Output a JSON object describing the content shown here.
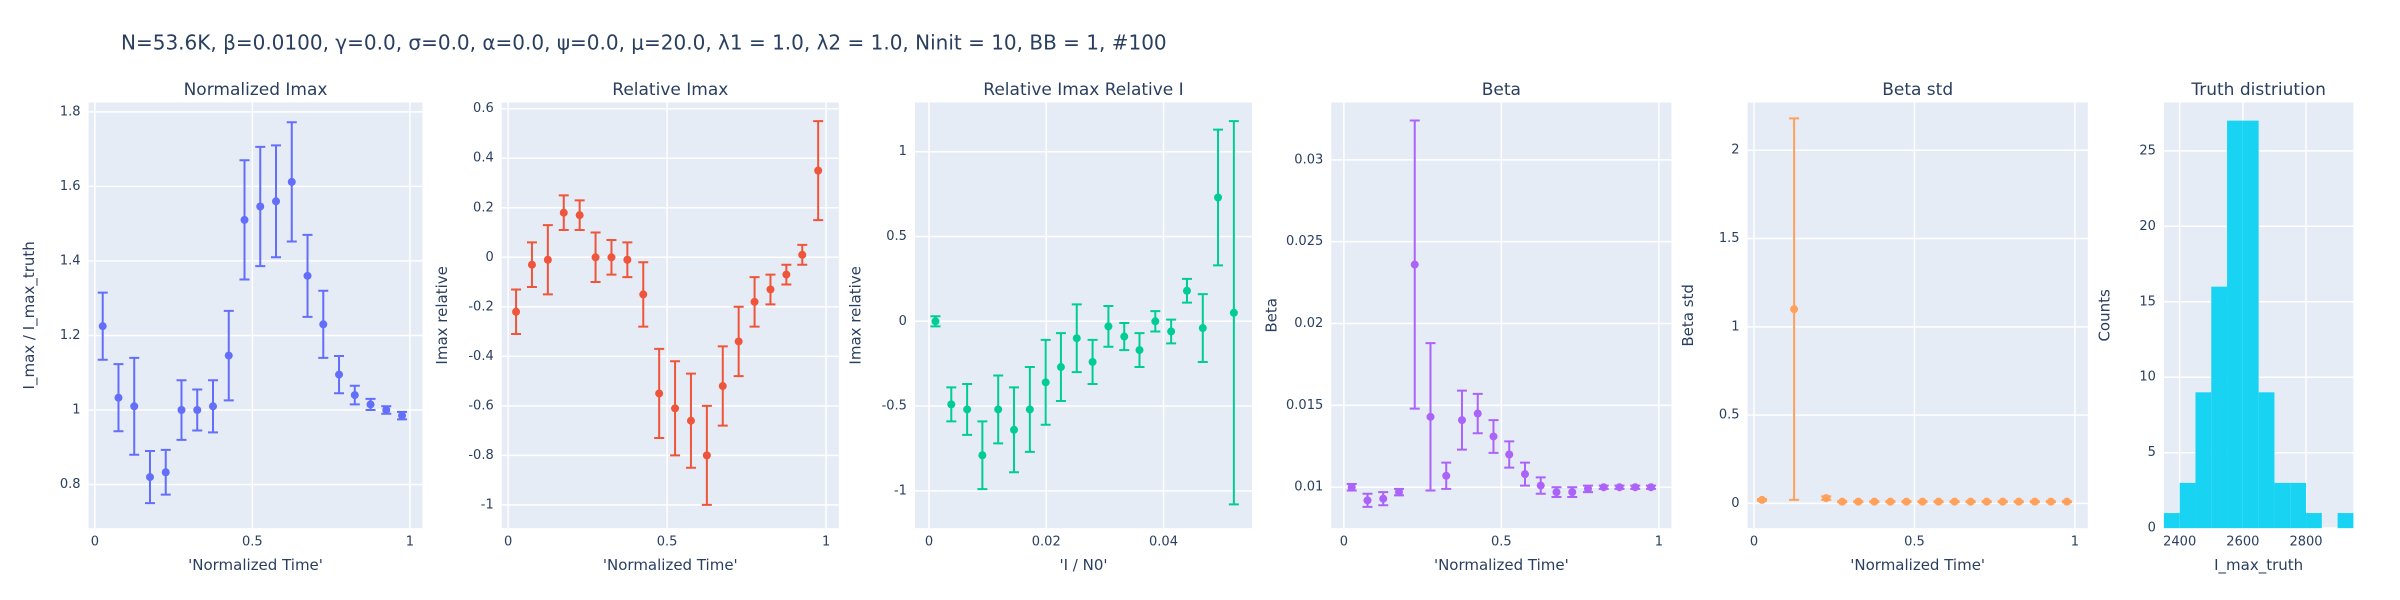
{
  "title": "N=53.6K, β=0.0100, γ=0.0, σ=0.0,  α=0.0, ψ=0.0, μ=20.0, λ1 = 1.0, λ2 = 1.0, Ninit = 10, BB = 1, #100",
  "chart_data": [
    {
      "type": "scatter",
      "title": "Normalized Imax",
      "x_label": "'Normalized Time'",
      "y_label": "I_max / I_max_truth",
      "color": "#636efa",
      "x": [
        0.025,
        0.075,
        0.125,
        0.175,
        0.225,
        0.275,
        0.325,
        0.375,
        0.425,
        0.475,
        0.525,
        0.575,
        0.625,
        0.675,
        0.725,
        0.775,
        0.825,
        0.875,
        0.925,
        0.975
      ],
      "values": [
        1.225,
        1.033,
        1.01,
        0.82,
        0.833,
        1.0,
        1.0,
        1.01,
        1.146,
        1.51,
        1.546,
        1.56,
        1.612,
        1.36,
        1.23,
        1.095,
        1.04,
        1.015,
        1.0,
        0.985
      ],
      "errors": [
        0.09,
        0.09,
        0.13,
        0.07,
        0.06,
        0.08,
        0.055,
        0.07,
        0.12,
        0.16,
        0.16,
        0.15,
        0.16,
        0.11,
        0.09,
        0.05,
        0.025,
        0.015,
        0.01,
        0.01
      ],
      "xlim": [
        -0.02,
        1.04
      ],
      "ylim": [
        0.683,
        1.825
      ],
      "xticks": [
        0,
        0.5,
        1
      ],
      "yticks": [
        0.8,
        1,
        1.2,
        1.4,
        1.6,
        1.8
      ],
      "grid": true
    },
    {
      "type": "scatter",
      "title": "Relative Imax",
      "x_label": "'Normalized Time'",
      "y_label": "Imax relative",
      "color": "#EF553B",
      "x": [
        0.025,
        0.075,
        0.125,
        0.175,
        0.225,
        0.275,
        0.325,
        0.375,
        0.425,
        0.475,
        0.525,
        0.575,
        0.625,
        0.675,
        0.725,
        0.775,
        0.825,
        0.875,
        0.925,
        0.975
      ],
      "values": [
        -0.22,
        -0.03,
        -0.01,
        0.18,
        0.17,
        0.0,
        0.0,
        -0.01,
        -0.15,
        -0.55,
        -0.61,
        -0.66,
        -0.8,
        -0.52,
        -0.34,
        -0.18,
        -0.13,
        -0.07,
        0.01,
        0.35
      ],
      "errors": [
        0.09,
        0.09,
        0.14,
        0.07,
        0.06,
        0.1,
        0.07,
        0.07,
        0.13,
        0.18,
        0.19,
        0.19,
        0.2,
        0.16,
        0.14,
        0.1,
        0.06,
        0.04,
        0.04,
        0.2
      ],
      "xlim": [
        -0.02,
        1.04
      ],
      "ylim": [
        -1.094,
        0.625
      ],
      "xticks": [
        0,
        0.5,
        1
      ],
      "yticks": [
        -1,
        -0.8,
        -0.6,
        -0.4,
        -0.2,
        0,
        0.2,
        0.4,
        0.6
      ],
      "grid": true
    },
    {
      "type": "scatter",
      "title": "Relative Imax Relative I",
      "x_label": "'I / N0'",
      "y_label": "Imax relative",
      "color": "#00cc96",
      "x": [
        0.0011,
        0.0038,
        0.0065,
        0.0091,
        0.0118,
        0.0145,
        0.0172,
        0.0199,
        0.0225,
        0.0252,
        0.0279,
        0.0306,
        0.0333,
        0.0359,
        0.0386,
        0.0413,
        0.044,
        0.0467,
        0.0493,
        0.052
      ],
      "values": [
        0.0,
        -0.49,
        -0.52,
        -0.79,
        -0.52,
        -0.64,
        -0.52,
        -0.36,
        -0.27,
        -0.1,
        -0.24,
        -0.03,
        -0.09,
        -0.17,
        0.0,
        -0.06,
        0.18,
        -0.04,
        0.73,
        0.05
      ],
      "errors": [
        0.03,
        0.1,
        0.15,
        0.2,
        0.2,
        0.25,
        0.25,
        0.25,
        0.2,
        0.2,
        0.13,
        0.12,
        0.08,
        0.1,
        0.06,
        0.07,
        0.07,
        0.2,
        0.4,
        1.13
      ],
      "xlim": [
        -0.0024,
        0.0551
      ],
      "ylim": [
        -1.22,
        1.29
      ],
      "xticks": [
        0,
        0.02,
        0.04
      ],
      "yticks": [
        -1,
        -0.5,
        0,
        0.5,
        1
      ],
      "grid": true
    },
    {
      "type": "scatter",
      "title": "Beta",
      "x_label": "'Normalized Time'",
      "y_label": "Beta",
      "color": "#ab63fa",
      "x": [
        0.025,
        0.075,
        0.125,
        0.175,
        0.225,
        0.275,
        0.325,
        0.375,
        0.425,
        0.475,
        0.525,
        0.575,
        0.625,
        0.675,
        0.725,
        0.775,
        0.825,
        0.875,
        0.925,
        0.975
      ],
      "values": [
        0.01,
        0.0092,
        0.0093,
        0.0097,
        0.0236,
        0.0143,
        0.0107,
        0.0141,
        0.0145,
        0.0131,
        0.012,
        0.0108,
        0.0101,
        0.0097,
        0.0097,
        0.0099,
        0.01,
        0.01,
        0.01,
        0.01
      ],
      "errors": [
        0.0002,
        0.0004,
        0.0004,
        0.0002,
        0.0088,
        0.0045,
        0.0008,
        0.0018,
        0.0012,
        0.001,
        0.0008,
        0.0007,
        0.0005,
        0.0003,
        0.0003,
        0.0002,
        0.0001,
        0.0001,
        0.0001,
        0.0001
      ],
      "xlim": [
        -0.04,
        1.04
      ],
      "ylim": [
        0.0075,
        0.0335
      ],
      "xticks": [
        0,
        0.5,
        1
      ],
      "yticks": [
        0.01,
        0.015,
        0.02,
        0.025,
        0.03
      ],
      "grid": true
    },
    {
      "type": "scatter",
      "title": "Beta std",
      "x_label": "'Normalized Time'",
      "y_label": "Beta std",
      "color": "#FFA15A",
      "x": [
        0.025,
        0.075,
        0.125,
        0.175,
        0.225,
        0.275,
        0.325,
        0.375,
        0.425,
        0.475,
        0.525,
        0.575,
        0.625,
        0.675,
        0.725,
        0.775,
        0.825,
        0.875,
        0.925,
        0.975
      ],
      "values": [
        0.02,
        null,
        1.1,
        null,
        0.03,
        0.01,
        0.01,
        0.01,
        0.01,
        0.01,
        0.01,
        0.01,
        0.01,
        0.01,
        0.01,
        0.01,
        0.01,
        0.01,
        0.01,
        0.01
      ],
      "errors": [
        0.005,
        null,
        1.08,
        null,
        0.01,
        0.003,
        0.003,
        0.003,
        0.003,
        0.003,
        0.003,
        0.003,
        0.003,
        0.003,
        0.003,
        0.003,
        0.003,
        0.003,
        0.003,
        0.003
      ],
      "xlim": [
        -0.02,
        1.04
      ],
      "ylim": [
        -0.14,
        2.27
      ],
      "xticks": [
        0,
        0.5,
        1
      ],
      "yticks": [
        0,
        0.5,
        1,
        1.5,
        2
      ],
      "grid": true
    },
    {
      "type": "histogram",
      "title": "Truth distriution",
      "x_label": "I_max_truth",
      "y_label": "Counts",
      "color": "#19d3f3",
      "bins": [
        2350,
        2400,
        2450,
        2500,
        2550,
        2600,
        2650,
        2700,
        2750,
        2800,
        2850,
        2900,
        2950
      ],
      "values": [
        1,
        3,
        9,
        16,
        27,
        27,
        9,
        3,
        3,
        1,
        0,
        1
      ],
      "xlim": [
        2350,
        2950
      ],
      "ylim": [
        0,
        28.2
      ],
      "xticks": [
        2400,
        2600,
        2800
      ],
      "yticks": [
        0,
        5,
        10,
        15,
        20,
        25
      ],
      "grid": true
    }
  ]
}
